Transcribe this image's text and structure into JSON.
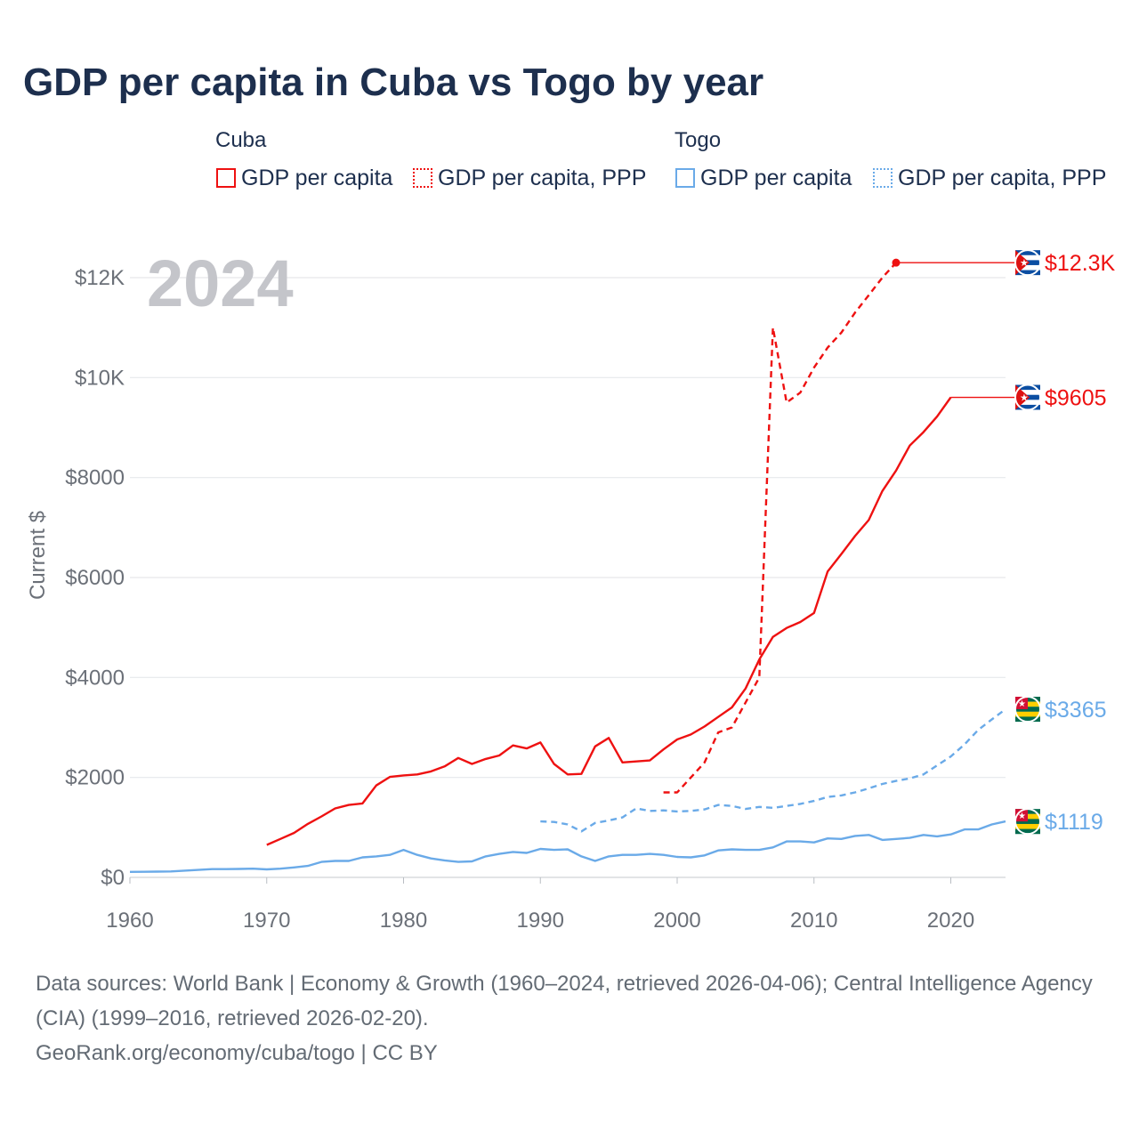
{
  "title": "GDP per capita in Cuba vs Togo by year",
  "legend": {
    "groups": [
      {
        "name": "Cuba",
        "items": [
          "GDP per capita",
          "GDP per capita, PPP"
        ]
      },
      {
        "name": "Togo",
        "items": [
          "GDP per capita",
          "GDP per capita, PPP"
        ]
      }
    ]
  },
  "colors": {
    "cuba": "#ee1111",
    "togo": "#6aaae8",
    "text": "#1d2f4e",
    "axis": "#6b7078",
    "year_watermark": "#c4c5ca"
  },
  "chart_data": {
    "type": "line",
    "title": "GDP per capita in Cuba vs Togo by year",
    "xlabel": "",
    "ylabel": "Current $",
    "year_watermark": "2024",
    "xlim": [
      1960,
      2024
    ],
    "ylim": [
      0,
      12500
    ],
    "x_ticks": [
      1960,
      1970,
      1980,
      1990,
      2000,
      2010,
      2020
    ],
    "x_tick_labels": [
      "1960",
      "1970",
      "1980",
      "1990",
      "2000",
      "2010",
      "2020"
    ],
    "y_ticks": [
      0,
      2000,
      4000,
      6000,
      8000,
      10000,
      12000
    ],
    "y_tick_labels": [
      "$0",
      "$2000",
      "$4000",
      "$6000",
      "$8000",
      "$10K",
      "$12K"
    ],
    "grid": true,
    "series": [
      {
        "name": "Cuba GDP per capita",
        "country": "Cuba",
        "color": "#ee1111",
        "dash": "solid",
        "end_label": "$9605",
        "x": [
          1970,
          1971,
          1972,
          1973,
          1974,
          1975,
          1976,
          1977,
          1978,
          1979,
          1980,
          1981,
          1982,
          1983,
          1984,
          1985,
          1986,
          1987,
          1988,
          1989,
          1990,
          1991,
          1992,
          1993,
          1994,
          1995,
          1996,
          1997,
          1998,
          1999,
          2000,
          2001,
          2002,
          2003,
          2004,
          2005,
          2006,
          2007,
          2008,
          2009,
          2010,
          2011,
          2012,
          2013,
          2014,
          2015,
          2016,
          2017,
          2018,
          2019,
          2020
        ],
        "y": [
          650,
          770,
          890,
          1070,
          1220,
          1380,
          1450,
          1480,
          1840,
          2010,
          2040,
          2060,
          2120,
          2220,
          2390,
          2270,
          2370,
          2440,
          2640,
          2580,
          2700,
          2270,
          2060,
          2070,
          2620,
          2790,
          2300,
          2320,
          2340,
          2560,
          2760,
          2860,
          3020,
          3210,
          3400,
          3780,
          4360,
          4810,
          4990,
          5110,
          5290,
          6120,
          6470,
          6830,
          7150,
          7730,
          8140,
          8640,
          8910,
          9220,
          9605
        ]
      },
      {
        "name": "Cuba GDP per capita, PPP",
        "country": "Cuba",
        "color": "#ee1111",
        "dash": "dashed",
        "end_label": "$12.3K",
        "x": [
          1999,
          2000,
          2001,
          2002,
          2003,
          2004,
          2005,
          2006,
          2007,
          2008,
          2009,
          2010,
          2011,
          2012,
          2013,
          2014,
          2015,
          2016
        ],
        "y": [
          1700,
          1700,
          2000,
          2300,
          2900,
          3000,
          3500,
          4000,
          11000,
          9500,
          9700,
          10200,
          10600,
          10900,
          11300,
          11650,
          12000,
          12300
        ]
      },
      {
        "name": "Togo GDP per capita",
        "country": "Togo",
        "color": "#6aaae8",
        "dash": "solid",
        "end_label": "$1119",
        "x": [
          1960,
          1961,
          1962,
          1963,
          1964,
          1965,
          1966,
          1967,
          1968,
          1969,
          1970,
          1971,
          1972,
          1973,
          1974,
          1975,
          1976,
          1977,
          1978,
          1979,
          1980,
          1981,
          1982,
          1983,
          1984,
          1985,
          1986,
          1987,
          1988,
          1989,
          1990,
          1991,
          1992,
          1993,
          1994,
          1995,
          1996,
          1997,
          1998,
          1999,
          2000,
          2001,
          2002,
          2003,
          2004,
          2005,
          2006,
          2007,
          2008,
          2009,
          2010,
          2011,
          2012,
          2013,
          2014,
          2015,
          2016,
          2017,
          2018,
          2019,
          2020,
          2021,
          2022,
          2023,
          2024
        ],
        "y": [
          110,
          112,
          115,
          120,
          135,
          150,
          165,
          165,
          170,
          175,
          160,
          175,
          200,
          230,
          310,
          330,
          330,
          400,
          420,
          450,
          550,
          450,
          380,
          340,
          310,
          320,
          420,
          470,
          510,
          490,
          570,
          550,
          560,
          420,
          330,
          420,
          450,
          450,
          470,
          450,
          410,
          400,
          440,
          540,
          560,
          550,
          550,
          600,
          720,
          720,
          700,
          780,
          770,
          830,
          850,
          750,
          770,
          790,
          850,
          820,
          860,
          960,
          960,
          1060,
          1119
        ]
      },
      {
        "name": "Togo GDP per capita, PPP",
        "country": "Togo",
        "color": "#6aaae8",
        "dash": "dashed",
        "end_label": "$3365",
        "x": [
          1990,
          1991,
          1992,
          1993,
          1994,
          1995,
          1996,
          1997,
          1998,
          1999,
          2000,
          2001,
          2002,
          2003,
          2004,
          2005,
          2006,
          2007,
          2008,
          2009,
          2010,
          2011,
          2012,
          2013,
          2014,
          2015,
          2016,
          2017,
          2018,
          2019,
          2020,
          2021,
          2022,
          2023,
          2024
        ],
        "y": [
          1120,
          1110,
          1060,
          920,
          1090,
          1140,
          1200,
          1380,
          1330,
          1340,
          1320,
          1330,
          1360,
          1450,
          1430,
          1370,
          1410,
          1390,
          1430,
          1470,
          1530,
          1610,
          1640,
          1700,
          1780,
          1870,
          1930,
          1980,
          2060,
          2240,
          2420,
          2660,
          2950,
          3160,
          3365
        ]
      }
    ]
  },
  "footer": {
    "sources": "Data sources: World Bank | Economy & Growth (1960–2024, retrieved 2026-04-06); Central Intelligence Agency (CIA) (1999–2016, retrieved 2026-02-20).",
    "credit": "GeoRank.org/economy/cuba/togo | CC BY"
  }
}
